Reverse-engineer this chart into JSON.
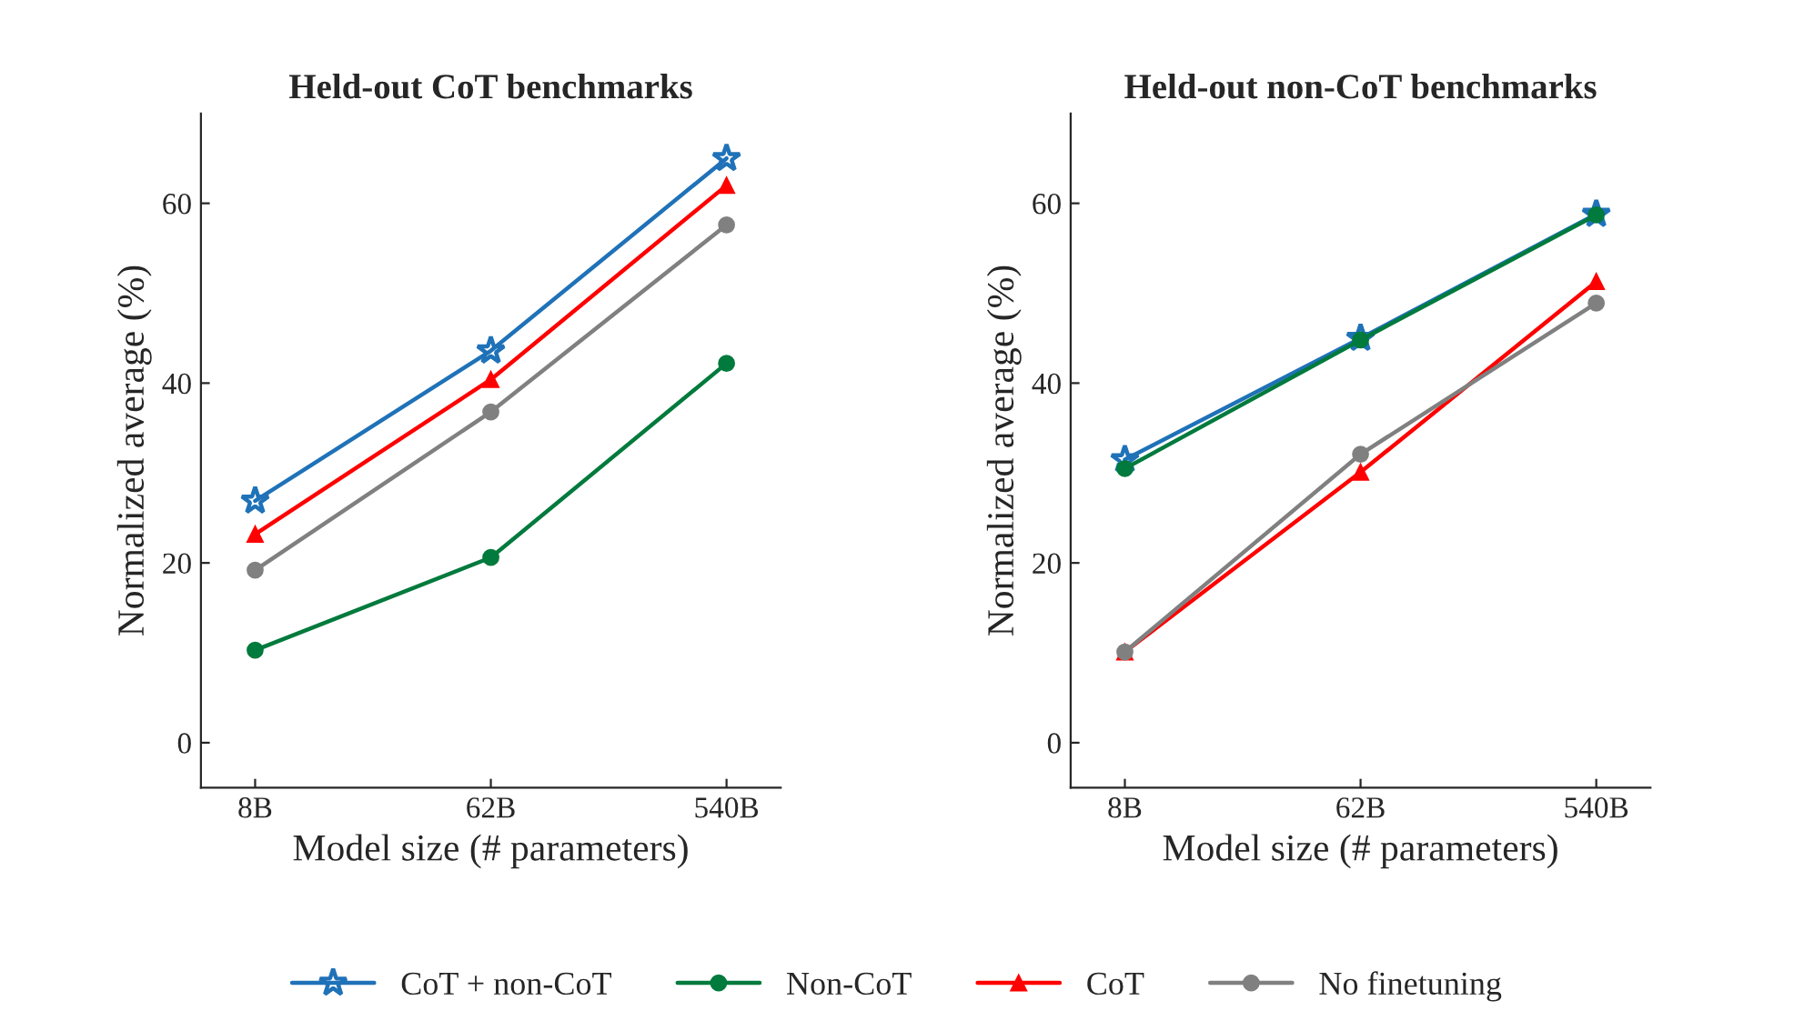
{
  "chart_data": [
    {
      "type": "line",
      "title": "Held-out CoT benchmarks",
      "xlabel": "Model size (# parameters)",
      "ylabel": "Normalized average (%)",
      "categories": [
        "8B",
        "62B",
        "540B"
      ],
      "ylim": [
        -5,
        70
      ],
      "yticks": [
        0,
        20,
        40,
        60
      ],
      "grid": false,
      "legend": "bottom",
      "series": [
        {
          "name": "CoT + non-CoT",
          "color": "#1f72b8",
          "marker": "star",
          "values": [
            26.9,
            43.6,
            65
          ]
        },
        {
          "name": "Non-CoT",
          "color": "#007a3d",
          "marker": "circle",
          "values": [
            10.3,
            20.6,
            42.2
          ]
        },
        {
          "name": "CoT",
          "color": "#ff0000",
          "marker": "triangle",
          "values": [
            23.2,
            40.4,
            62
          ]
        },
        {
          "name": "No finetuning",
          "color": "#808080",
          "marker": "circle",
          "values": [
            19.2,
            36.8,
            57.6
          ]
        }
      ]
    },
    {
      "type": "line",
      "title": "Held-out non-CoT benchmarks",
      "xlabel": "Model size (# parameters)",
      "ylabel": "Normalized average (%)",
      "categories": [
        "8B",
        "62B",
        "540B"
      ],
      "ylim": [
        -5,
        70
      ],
      "yticks": [
        0,
        20,
        40,
        60
      ],
      "grid": false,
      "series": [
        {
          "color": "#1f72b8",
          "marker": "star",
          "values": [
            31.5,
            45,
            58.8
          ]
        },
        {
          "color": "#007a3d",
          "marker": "circle",
          "values": [
            30.5,
            44.8,
            58.7
          ]
        },
        {
          "color": "#ff0000",
          "marker": "triangle",
          "values": [
            10.1,
            30.1,
            51.3
          ]
        },
        {
          "color": "#808080",
          "marker": "circle",
          "values": [
            10.1,
            32.1,
            48.9
          ]
        }
      ]
    }
  ]
}
